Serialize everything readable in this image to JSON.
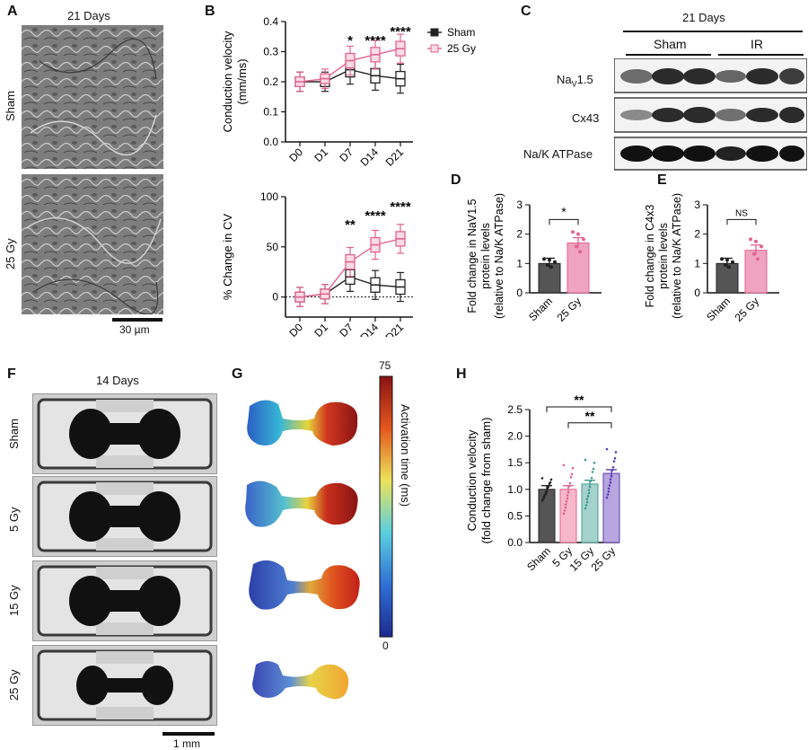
{
  "panels": {
    "A": {
      "letter": "A",
      "title": "21 Days",
      "rows": [
        "Sham",
        "25 Gy"
      ],
      "scale": "30 µm"
    },
    "B": {
      "letter": "B"
    },
    "C": {
      "letter": "C",
      "title": "21 Days",
      "groups": [
        "Sham",
        "IR"
      ],
      "bands": [
        "1.5",
        "Cx43",
        "Na/K ATPase"
      ],
      "nav_main": "Na",
      "nav_sub": "V"
    },
    "D": {
      "letter": "D"
    },
    "E": {
      "letter": "E"
    },
    "F": {
      "letter": "F",
      "title": "14 Days",
      "rows": [
        "Sham",
        "5 Gy",
        "15 Gy",
        "25 Gy"
      ],
      "scale": "1 mm"
    },
    "G": {
      "letter": "G",
      "cbar_max": "75",
      "cbar_min": "0",
      "cbar_label": "Activation time (ms)"
    },
    "H": {
      "letter": "H"
    }
  },
  "chart_data": [
    {
      "id": "B-top",
      "type": "line",
      "categories": [
        "D0",
        "D1",
        "D7",
        "D14",
        "D21"
      ],
      "ylabel": "Conduction velocity (mm/ms)",
      "ylim": [
        0,
        0.4
      ],
      "yticks": [
        "0.0",
        "0.1",
        "0.2",
        "0.3",
        "0.4"
      ],
      "series": [
        {
          "name": "Sham",
          "values": [
            0.2,
            0.2,
            0.24,
            0.22,
            0.21
          ],
          "color": "#222222"
        },
        {
          "name": "25 Gy",
          "values": [
            0.2,
            0.21,
            0.27,
            0.29,
            0.31
          ],
          "color": "#e0638f"
        }
      ],
      "annotations": [
        {
          "x": "D7",
          "text": "*"
        },
        {
          "x": "D14",
          "text": "****"
        },
        {
          "x": "D21",
          "text": "****"
        }
      ],
      "legend": "top-right"
    },
    {
      "id": "B-bottom",
      "type": "line",
      "categories": [
        "D0",
        "D1",
        "D7",
        "D14",
        "D21"
      ],
      "ylabel": "% Change in CV",
      "ylim": [
        -20,
        100
      ],
      "yticks": [
        "0",
        "50",
        "100"
      ],
      "series": [
        {
          "name": "Sham",
          "values": [
            0,
            3,
            20,
            12,
            10
          ],
          "color": "#222222"
        },
        {
          "name": "25 Gy",
          "values": [
            0,
            3,
            35,
            52,
            58
          ],
          "color": "#e0638f"
        }
      ],
      "annotations": [
        {
          "x": "D7",
          "text": "**"
        },
        {
          "x": "D14",
          "text": "****"
        },
        {
          "x": "D21",
          "text": "****"
        }
      ]
    },
    {
      "id": "D",
      "type": "bar",
      "categories": [
        "Sham",
        "25 Gy"
      ],
      "values": [
        1.0,
        1.7
      ],
      "ylabel": "Fold change in NaV1.5 protein levels (relative to Na/K ATPase)",
      "ylim": [
        0,
        3
      ],
      "yticks": [
        "0",
        "1",
        "2",
        "3"
      ],
      "significance": "*"
    },
    {
      "id": "E",
      "type": "bar",
      "categories": [
        "Sham",
        "25 Gy"
      ],
      "values": [
        1.0,
        1.45
      ],
      "ylabel": "Fold change in C4x3 protein levels (relative to Na/K ATPase)",
      "ylim": [
        0,
        3
      ],
      "yticks": [
        "0",
        "1",
        "2",
        "3"
      ],
      "significance": "NS"
    },
    {
      "id": "H",
      "type": "bar",
      "categories": [
        "Sham",
        "5 Gy",
        "15 Gy",
        "25 Gy"
      ],
      "values": [
        1.0,
        1.0,
        1.1,
        1.3
      ],
      "ylabel": "Conduction velocity (fold change from sham)",
      "ylim": [
        0,
        2.5
      ],
      "yticks": [
        "0.0",
        "0.5",
        "1.0",
        "1.5",
        "2.0",
        "2.5"
      ],
      "significance": [
        {
          "from": "Sham",
          "to": "25 Gy",
          "text": "**"
        },
        {
          "from": "5 Gy",
          "to": "25 Gy",
          "text": "**"
        }
      ]
    }
  ],
  "colors": {
    "sham": "#555555",
    "gy25": "#f0a3bf",
    "gy25_line": "#e0638f",
    "gy15": "#a6d2cc",
    "gy15_line": "#3f9b90",
    "gy5": "#f6b7cb",
    "gy25H": "#b7a6e0",
    "gy25H_line": "#5b3fb0"
  }
}
